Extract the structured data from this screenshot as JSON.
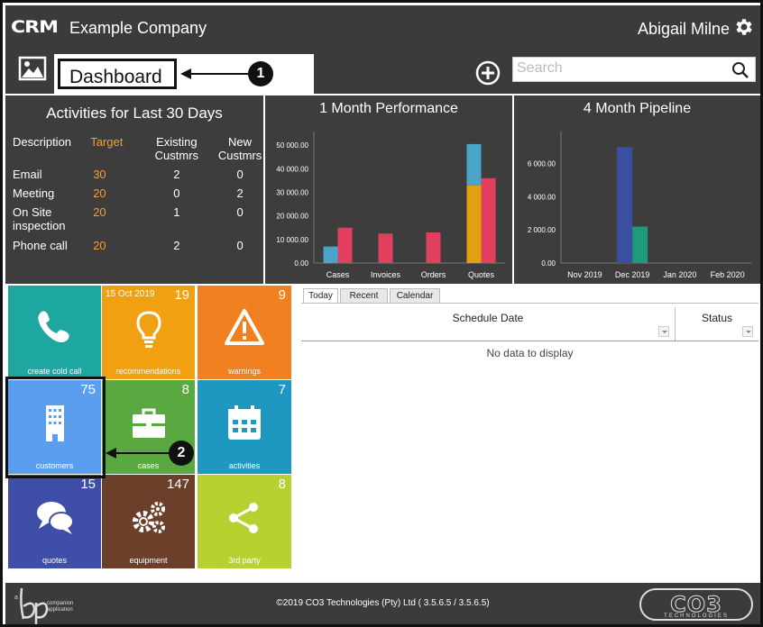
{
  "header": {
    "logo": "CRM",
    "company": "Example Company",
    "user": "Abigail Milne"
  },
  "subbar": {
    "page_title": "Dashboard",
    "callout_1": "1",
    "callout_2": "2",
    "search_placeholder": "Search"
  },
  "activities": {
    "title": "Activities for Last 30 Days",
    "headers": [
      "Description",
      "Target",
      "Existing Custmrs",
      "New Custmrs"
    ],
    "rows": [
      {
        "desc": "Email",
        "target": "30",
        "existing": "2",
        "new": "0"
      },
      {
        "desc": "Meeting",
        "target": "20",
        "existing": "0",
        "new": "2"
      },
      {
        "desc": "On Site inspection",
        "target": "20",
        "existing": "1",
        "new": "0"
      },
      {
        "desc": "Phone call",
        "target": "20",
        "existing": "2",
        "new": "0"
      }
    ]
  },
  "chart_data": [
    {
      "type": "bar",
      "title": "1 Month Performance",
      "categories": [
        "Cases",
        "Invoices",
        "Orders",
        "Quotes"
      ],
      "ytick_labels": [
        "0.00",
        "10 000.00",
        "20 000.00",
        "30 000.00",
        "40 000.00",
        "50 000.00"
      ],
      "ylim": [
        0,
        52000
      ],
      "bars": [
        {
          "category": "Cases",
          "value": 7000,
          "color": "#4aa3c9"
        },
        {
          "category": "Cases",
          "value": 15000,
          "color": "#e0405e"
        },
        {
          "category": "Invoices",
          "value": 12500,
          "color": "#e0405e"
        },
        {
          "category": "Orders",
          "value": 13000,
          "color": "#e0405e"
        },
        {
          "category": "Quotes",
          "stack": [
            {
              "value": 33000,
              "color": "#e0a010"
            },
            {
              "value": 17500,
              "color": "#4aa3c9"
            }
          ]
        },
        {
          "category": "Quotes",
          "value": 36000,
          "color": "#e0405e"
        }
      ]
    },
    {
      "type": "bar",
      "title": "4 Month Pipeline",
      "categories": [
        "Nov 2019",
        "Dec 2019",
        "Jan 2020",
        "Feb 2020"
      ],
      "ytick_labels": [
        "0.00",
        "2 000.00",
        "4 000.00",
        "6 000.00"
      ],
      "ylim": [
        0,
        7400
      ],
      "bars": [
        {
          "category": "Dec 2019",
          "value": 7000,
          "color": "#3b4fa0"
        },
        {
          "category": "Dec 2019",
          "value": 2200,
          "color": "#1f9a7a"
        }
      ]
    }
  ],
  "tiles": [
    {
      "label": "create cold call",
      "count": "",
      "date": "",
      "color": "#1ea7a0",
      "icon": "phone-icon"
    },
    {
      "label": "recommendations",
      "count": "19",
      "date": "15 Oct 2019",
      "color": "#f0a010",
      "icon": "lightbulb-icon"
    },
    {
      "label": "warnings",
      "count": "9",
      "date": "",
      "color": "#f08020",
      "icon": "warning-icon"
    },
    {
      "label": "customers",
      "count": "75",
      "date": "",
      "color": "#5b9ef0",
      "icon": "building-icon"
    },
    {
      "label": "cases",
      "count": "8",
      "date": "",
      "color": "#5aa840",
      "icon": "briefcase-icon"
    },
    {
      "label": "activities",
      "count": "7",
      "date": "",
      "color": "#1e98c0",
      "icon": "calendar-icon"
    },
    {
      "label": "quotes",
      "count": "15",
      "date": "",
      "color": "#3f4ea8",
      "icon": "chat-icon"
    },
    {
      "label": "equipment",
      "count": "147",
      "date": "",
      "color": "#6b3f2a",
      "icon": "gears-icon"
    },
    {
      "label": "3rd party",
      "count": "8",
      "date": "",
      "color": "#b8d030",
      "icon": "share-icon"
    }
  ],
  "schedule": {
    "tabs": [
      "Today",
      "Recent",
      "Calendar"
    ],
    "columns": [
      "Schedule Date",
      "Status"
    ],
    "empty": "No data to display"
  },
  "footer": {
    "copyright": "©2019 CO3 Technologies (Pty) Ltd ( 3.5.6.5 / 3.5.6.5)",
    "bp_small": "a",
    "bp_text_1": "companion",
    "bp_text_2": "application",
    "co3": "CO3",
    "co3_sub": "TECHNOLOGIES"
  }
}
